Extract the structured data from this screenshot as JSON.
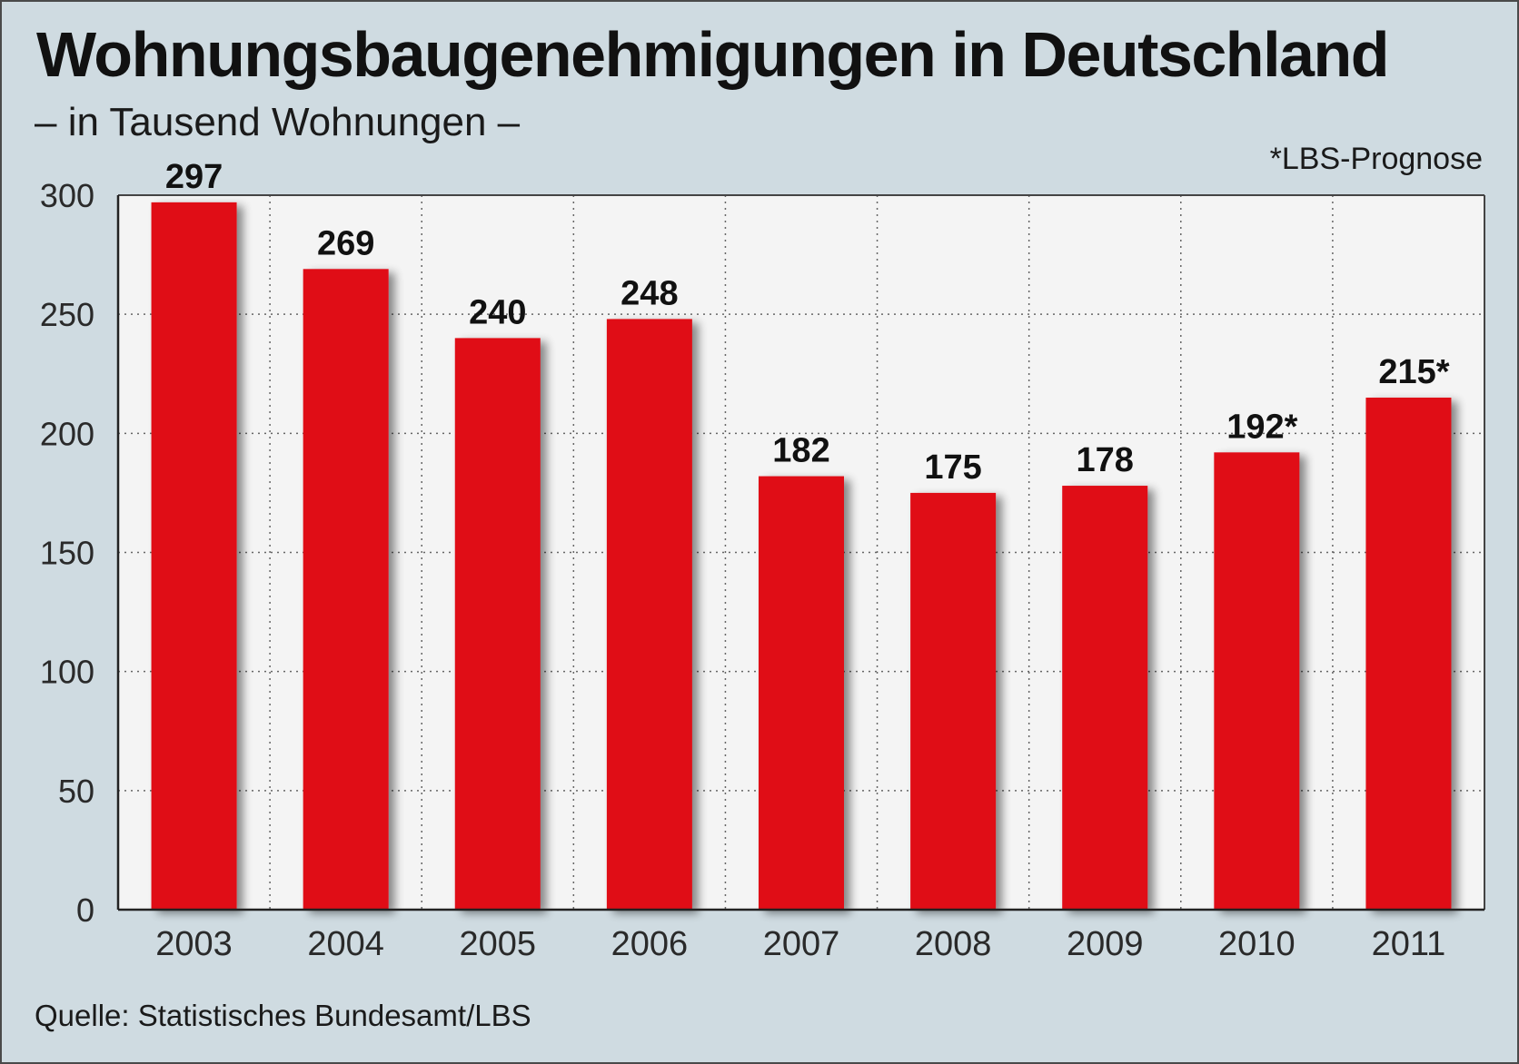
{
  "header": {
    "title": "Wohnungsbaugenehmigungen in Deutschland",
    "subtitle": "– in Tausend Wohnungen –",
    "note": "*LBS-Prognose"
  },
  "footer": {
    "source": "Quelle: Statistisches Bundesamt/LBS"
  },
  "colors": {
    "bar": "#e00b18",
    "plot_bg": "#f4f4f4",
    "page_bg": "#cfdbe1"
  },
  "chart_data": {
    "type": "bar",
    "title": "Wohnungsbaugenehmigungen in Deutschland",
    "subtitle": "– in Tausend Wohnungen –",
    "xlabel": "",
    "ylabel": "",
    "categories": [
      "2003",
      "2004",
      "2005",
      "2006",
      "2007",
      "2008",
      "2009",
      "2010",
      "2011"
    ],
    "values": [
      297,
      269,
      240,
      248,
      182,
      175,
      178,
      192,
      215
    ],
    "data_labels": [
      "297",
      "269",
      "240",
      "248",
      "182",
      "175",
      "178",
      "192*",
      "215*"
    ],
    "ylim": [
      0,
      300
    ],
    "yticks": [
      0,
      50,
      100,
      150,
      200,
      250,
      300
    ],
    "grid": true,
    "legend": "none",
    "footnote": "*LBS-Prognose"
  }
}
